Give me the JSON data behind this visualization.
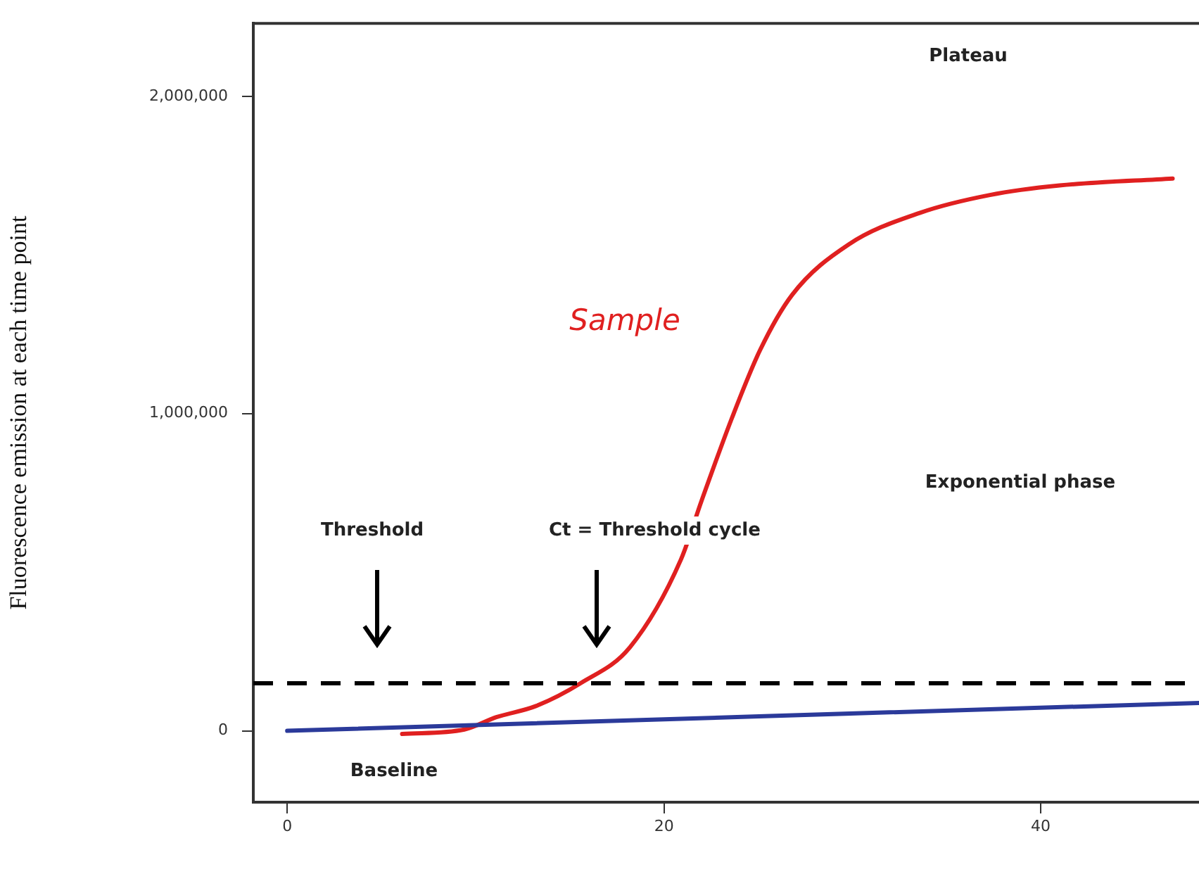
{
  "chart_data": {
    "type": "line",
    "ylabel": "Fluorescence emission at each time point",
    "xlim": [
      -1.8,
      48.4
    ],
    "xticks": [
      0,
      20,
      40
    ],
    "ylim": [
      -225000,
      2230000
    ],
    "yticks": [
      {
        "value": 0,
        "label": "0"
      },
      {
        "value": 1000000,
        "label": "1,000,000"
      },
      {
        "value": 2000000,
        "label": "2,000,000"
      }
    ],
    "grid": false,
    "legend": false,
    "marker": "none",
    "series": [
      {
        "color": "#2b3a9a",
        "x": [
          0,
          48.4
        ],
        "values": [
          0,
          88000
        ]
      },
      {
        "color": "#e02020",
        "x": [
          6.1,
          9.4,
          11.1,
          13.2,
          15.6,
          18.2,
          20.9,
          22.0,
          23.6,
          25.1,
          26.8,
          29.8,
          33.6,
          37.3,
          41.0,
          47.0
        ],
        "values": [
          -10000,
          4000,
          43000,
          78000,
          151000,
          264000,
          540000,
          726000,
          985000,
          1200000,
          1374000,
          1533000,
          1633000,
          1689000,
          1719000,
          1741000
        ]
      }
    ],
    "ref_lines": [
      {
        "axis": "y",
        "value": 150000,
        "color": "#000000",
        "line_style": "dashed"
      }
    ],
    "annotations": [
      "Sample",
      "Threshold",
      "Ct = Threshold cycle",
      "Plateau",
      "Exponential phase",
      "Baseline"
    ]
  }
}
